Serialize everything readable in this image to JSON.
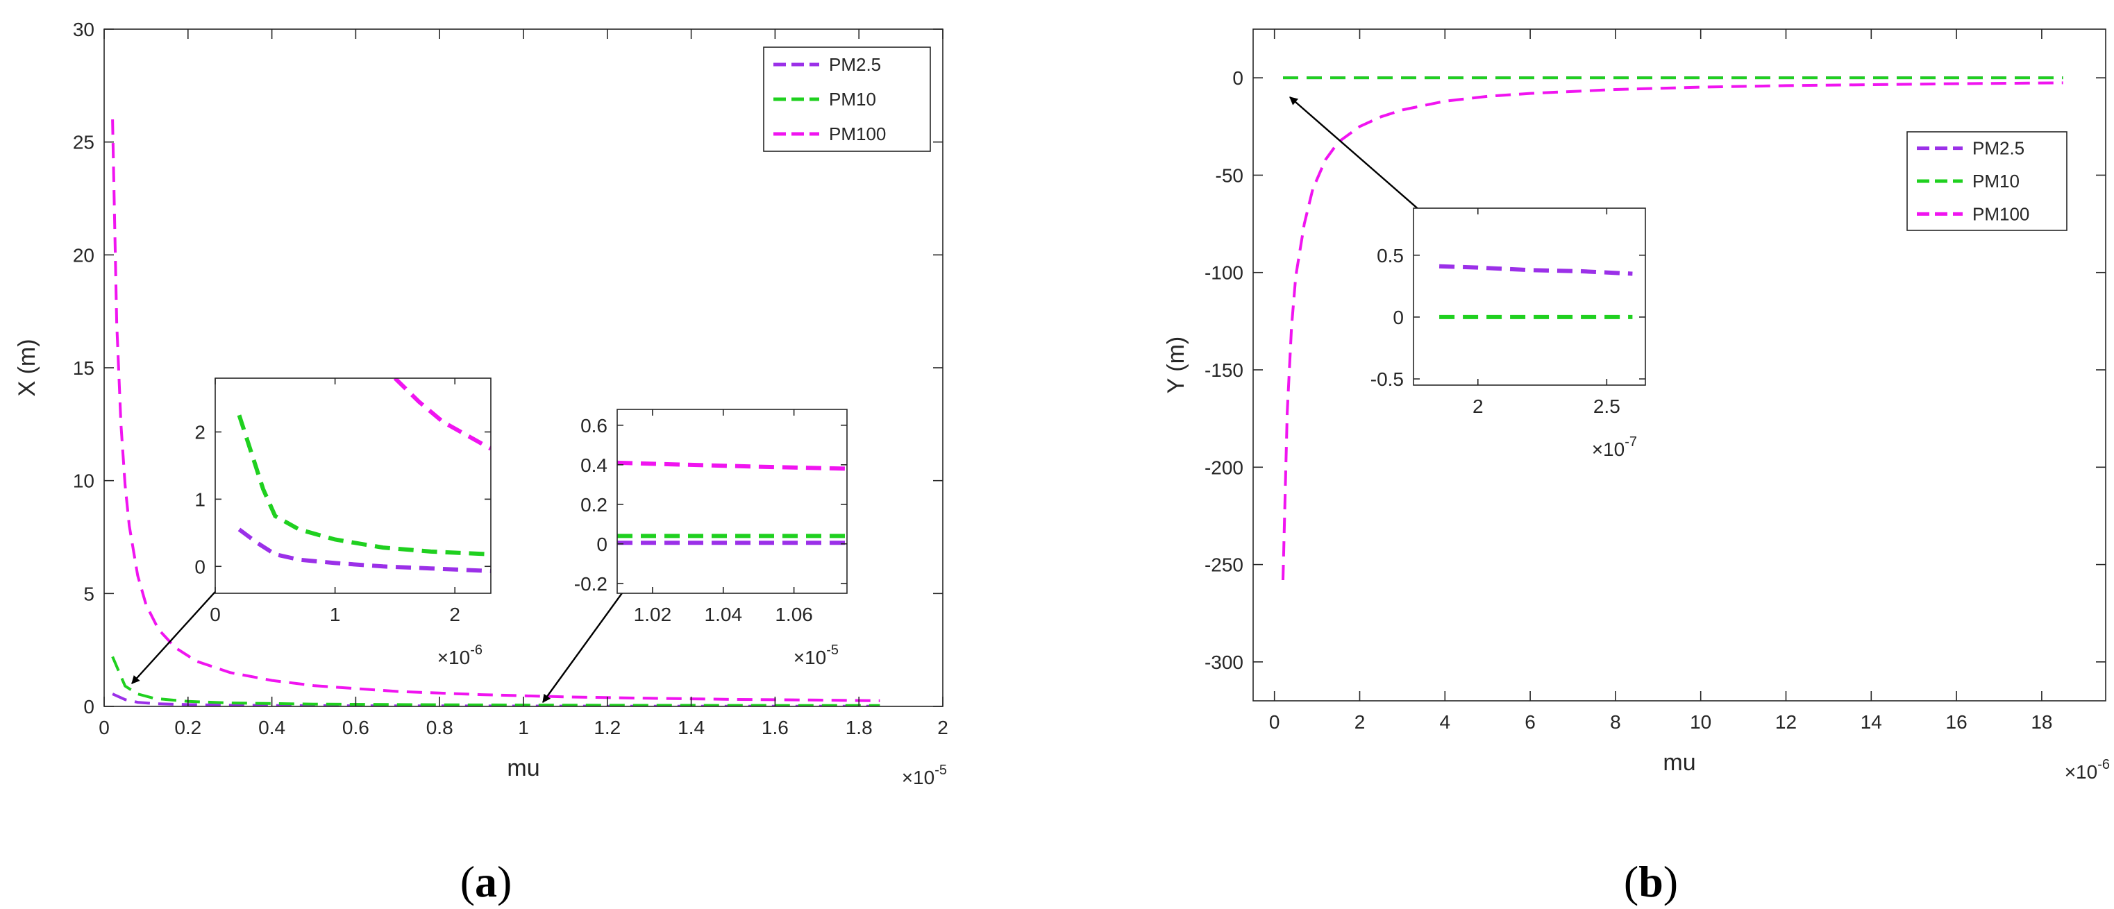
{
  "colors": {
    "PM2.5": "#9B30E8",
    "PM10": "#1FD01F",
    "PM100": "#F014F0",
    "axis": "#262626"
  },
  "panel_labels": {
    "a": {
      "open": "(",
      "letter": "a",
      "close": ")"
    },
    "b": {
      "open": "(",
      "letter": "b",
      "close": ")"
    }
  },
  "chart_data": [
    {
      "id": "a-main",
      "type": "line",
      "xlabel": "mu",
      "ylabel": "X (m)",
      "x_multiplier": {
        "base": "×10",
        "exp": "-5"
      },
      "xlim": [
        0,
        2
      ],
      "ylim": [
        0,
        30
      ],
      "xticks": [
        0,
        0.2,
        0.4,
        0.6,
        0.8,
        1,
        1.2,
        1.4,
        1.6,
        1.8,
        2
      ],
      "yticks": [
        0,
        5,
        10,
        15,
        20,
        25,
        30
      ],
      "legend": {
        "placement": "top-right",
        "entries": [
          "PM2.5",
          "PM10",
          "PM100"
        ]
      },
      "series": [
        {
          "name": "PM2.5",
          "x": [
            0.02,
            0.05,
            0.08,
            0.12,
            0.2,
            0.3,
            0.5,
            0.8,
            1.2,
            1.6,
            1.85
          ],
          "y": [
            0.55,
            0.3,
            0.18,
            0.12,
            0.08,
            0.05,
            0.03,
            0.02,
            0.01,
            0.01,
            0.01
          ]
        },
        {
          "name": "PM10",
          "x": [
            0.02,
            0.05,
            0.08,
            0.12,
            0.2,
            0.3,
            0.5,
            0.8,
            1.2,
            1.6,
            1.85
          ],
          "y": [
            2.2,
            0.9,
            0.55,
            0.35,
            0.22,
            0.15,
            0.1,
            0.07,
            0.05,
            0.04,
            0.04
          ]
        },
        {
          "name": "PM100",
          "x": [
            0.02,
            0.03,
            0.04,
            0.05,
            0.06,
            0.08,
            0.1,
            0.13,
            0.17,
            0.22,
            0.3,
            0.4,
            0.5,
            0.7,
            0.9,
            1.1,
            1.3,
            1.5,
            1.7,
            1.85
          ],
          "y": [
            26,
            17,
            12.5,
            9.8,
            8.0,
            5.8,
            4.5,
            3.4,
            2.6,
            2.0,
            1.5,
            1.15,
            0.92,
            0.66,
            0.52,
            0.42,
            0.36,
            0.31,
            0.28,
            0.25
          ]
        }
      ]
    },
    {
      "id": "a-inset-1",
      "type": "line",
      "x_multiplier": {
        "base": "×10",
        "exp": "-6"
      },
      "xlim": [
        0,
        2.3
      ],
      "ylim": [
        -0.4,
        2.8
      ],
      "xticks": [
        0,
        1,
        2
      ],
      "yticks": [
        0,
        1,
        2
      ],
      "series": [
        {
          "name": "PM2.5",
          "x": [
            0.2,
            0.35,
            0.5,
            0.7,
            1.0,
            1.4,
            1.8,
            2.3
          ],
          "y": [
            0.55,
            0.35,
            0.18,
            0.1,
            0.05,
            0.0,
            -0.03,
            -0.07
          ]
        },
        {
          "name": "PM10",
          "x": [
            0.2,
            0.3,
            0.4,
            0.5,
            0.7,
            1.0,
            1.4,
            1.8,
            2.3
          ],
          "y": [
            2.25,
            1.7,
            1.15,
            0.75,
            0.55,
            0.4,
            0.28,
            0.22,
            0.18
          ]
        },
        {
          "name": "PM100",
          "x": [
            1.5,
            1.7,
            1.9,
            2.1,
            2.3
          ],
          "y": [
            2.8,
            2.45,
            2.15,
            1.95,
            1.75
          ]
        }
      ]
    },
    {
      "id": "a-inset-2",
      "type": "line",
      "x_multiplier": {
        "base": "×10",
        "exp": "-5"
      },
      "xlim": [
        1.01,
        1.075
      ],
      "ylim": [
        -0.25,
        0.68
      ],
      "xticks": [
        1.02,
        1.04,
        1.06
      ],
      "yticks": [
        -0.2,
        0,
        0.2,
        0.4,
        0.6
      ],
      "series": [
        {
          "name": "PM2.5",
          "x": [
            1.01,
            1.03,
            1.05,
            1.075
          ],
          "y": [
            0.005,
            0.005,
            0.005,
            0.005
          ]
        },
        {
          "name": "PM10",
          "x": [
            1.01,
            1.03,
            1.05,
            1.075
          ],
          "y": [
            0.04,
            0.04,
            0.04,
            0.04
          ]
        },
        {
          "name": "PM100",
          "x": [
            1.01,
            1.03,
            1.05,
            1.075
          ],
          "y": [
            0.41,
            0.4,
            0.39,
            0.38
          ]
        }
      ]
    },
    {
      "id": "b-main",
      "type": "line",
      "xlabel": "mu",
      "ylabel": "Y (m)",
      "x_multiplier": {
        "base": "×10",
        "exp": "-6"
      },
      "xlim": [
        -0.5,
        19.5
      ],
      "ylim": [
        -320,
        25
      ],
      "xticks": [
        0,
        2,
        4,
        6,
        8,
        10,
        12,
        14,
        16,
        18
      ],
      "yticks": [
        -300,
        -250,
        -200,
        -150,
        -100,
        -50,
        0
      ],
      "legend": {
        "placement": "right",
        "entries": [
          "PM2.5",
          "PM10",
          "PM100"
        ]
      },
      "series": [
        {
          "name": "PM2.5",
          "x": [
            0.2,
            1,
            2,
            4,
            6,
            8,
            10,
            12,
            14,
            16,
            18.5
          ],
          "y": [
            0,
            0,
            0,
            0,
            0,
            0,
            0,
            0,
            0,
            0,
            0
          ]
        },
        {
          "name": "PM10",
          "x": [
            0.2,
            1,
            2,
            4,
            6,
            8,
            10,
            12,
            14,
            16,
            18.5
          ],
          "y": [
            0,
            0,
            0,
            0,
            0,
            0,
            0,
            0,
            0,
            0,
            0
          ]
        },
        {
          "name": "PM100",
          "x": [
            0.2,
            0.3,
            0.4,
            0.5,
            0.7,
            0.9,
            1.2,
            1.5,
            2,
            2.5,
            3,
            4,
            5,
            6,
            8,
            10,
            12,
            14,
            16,
            18.5
          ],
          "y": [
            -258,
            -172,
            -128,
            -102,
            -75,
            -57,
            -42,
            -33,
            -25,
            -20,
            -16.5,
            -12,
            -9.5,
            -8,
            -6,
            -4.8,
            -4,
            -3.5,
            -3,
            -2.6
          ]
        }
      ]
    },
    {
      "id": "b-inset",
      "type": "line",
      "x_multiplier": {
        "base": "×10",
        "exp": "-7"
      },
      "xlim": [
        1.75,
        2.65
      ],
      "ylim": [
        -0.55,
        0.88
      ],
      "xticks": [
        2,
        2.5
      ],
      "yticks": [
        -0.5,
        0,
        0.5
      ],
      "series": [
        {
          "name": "PM2.5",
          "x": [
            1.85,
            2.0,
            2.2,
            2.4,
            2.6
          ],
          "y": [
            0.41,
            0.4,
            0.38,
            0.37,
            0.35
          ]
        },
        {
          "name": "PM10",
          "x": [
            1.85,
            2.0,
            2.2,
            2.4,
            2.6
          ],
          "y": [
            0,
            0,
            0,
            0,
            0
          ]
        }
      ]
    }
  ]
}
